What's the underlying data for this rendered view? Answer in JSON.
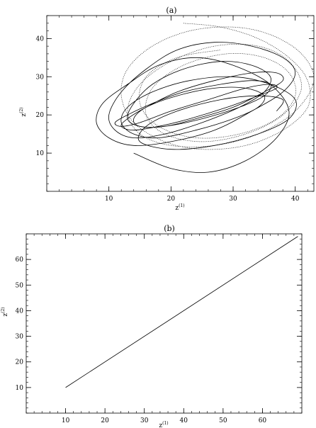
{
  "chart_data": [
    {
      "type": "line",
      "panel_label": "(a)",
      "xlabel_base": "z",
      "xlabel_sup": "(1)",
      "ylabel_base": "z",
      "ylabel_sup": "(2)",
      "xlim": [
        0,
        43
      ],
      "ylim": [
        0,
        46
      ],
      "xticks": [
        10,
        20,
        30,
        40
      ],
      "yticks": [
        10,
        20,
        30,
        40
      ],
      "grid": false,
      "series": [
        {
          "style": "solid",
          "color": "#000000",
          "description_free": true,
          "x": [
            14,
            20,
            26,
            32,
            37,
            39,
            36,
            30,
            24,
            18,
            13,
            9,
            8,
            10,
            14,
            20,
            27,
            33,
            38,
            40,
            38,
            33,
            27,
            21,
            16,
            12,
            10,
            11,
            14,
            19,
            25,
            31,
            35,
            36,
            33,
            28,
            22,
            17,
            14,
            13,
            15,
            19,
            24,
            30,
            35,
            38,
            37,
            33,
            27,
            21,
            16,
            13,
            12,
            14,
            18,
            23,
            29,
            34,
            37,
            36,
            32,
            26,
            20,
            15,
            12,
            11,
            13,
            17,
            22,
            28,
            33,
            36,
            35,
            31,
            25,
            19,
            15,
            14,
            16,
            21,
            27,
            32,
            35,
            34,
            30,
            24,
            18,
            14,
            12,
            13,
            17,
            23,
            30,
            36,
            40,
            39,
            34,
            27,
            20,
            15,
            16,
            21,
            28,
            34,
            38,
            37
          ],
          "y": [
            10,
            6,
            5,
            8,
            14,
            21,
            28,
            33,
            35,
            33,
            28,
            23,
            18,
            14,
            12,
            13,
            16,
            21,
            26,
            31,
            35,
            38,
            39,
            37,
            32,
            26,
            20,
            16,
            14,
            15,
            18,
            22,
            26,
            30,
            33,
            34,
            32,
            28,
            23,
            19,
            17,
            17,
            19,
            22,
            26,
            29,
            31,
            31,
            29,
            26,
            22,
            19,
            17,
            16,
            17,
            19,
            22,
            25,
            27,
            28,
            27,
            24,
            21,
            18,
            17,
            18,
            20,
            23,
            26,
            28,
            29,
            28,
            25,
            22,
            19,
            17,
            17,
            19,
            22,
            25,
            27,
            27,
            25,
            22,
            19,
            16,
            14,
            15,
            18,
            22,
            26,
            29,
            30,
            28,
            24,
            19,
            15,
            12,
            11,
            13,
            17,
            21,
            24,
            25,
            24,
            21
          ]
        },
        {
          "style": "dotted",
          "color": "#000000",
          "x": [
            22,
            28,
            34,
            39,
            42,
            42,
            38,
            32,
            25,
            19,
            14,
            12,
            13,
            17,
            23,
            30,
            36,
            41,
            43,
            40,
            34,
            27,
            20,
            15,
            13,
            15,
            20,
            27,
            34,
            39,
            41,
            38,
            32,
            25,
            19,
            16,
            17,
            22,
            29,
            35,
            39,
            40,
            37,
            31,
            24,
            18,
            15,
            16,
            21,
            28
          ],
          "y": [
            44,
            43,
            40,
            35,
            29,
            22,
            16,
            12,
            11,
            13,
            18,
            25,
            32,
            38,
            42,
            43,
            41,
            36,
            29,
            21,
            15,
            12,
            12,
            15,
            21,
            28,
            34,
            38,
            38,
            34,
            27,
            20,
            15,
            13,
            15,
            20,
            27,
            33,
            36,
            35,
            31,
            25,
            19,
            15,
            14,
            17,
            23,
            30,
            35,
            37
          ]
        }
      ]
    },
    {
      "type": "line",
      "panel_label": "(b)",
      "xlabel_base": "z",
      "xlabel_sup": "(1)",
      "ylabel_base": "z",
      "ylabel_sup": "(2)",
      "xlim": [
        0,
        70
      ],
      "ylim": [
        0,
        70
      ],
      "xticks": [
        10,
        20,
        30,
        40,
        50,
        60
      ],
      "yticks": [
        10,
        20,
        30,
        40,
        50,
        60
      ],
      "grid": false,
      "series": [
        {
          "style": "solid",
          "color": "#000000",
          "x": [
            10,
            69
          ],
          "y": [
            10,
            69
          ]
        }
      ]
    }
  ]
}
